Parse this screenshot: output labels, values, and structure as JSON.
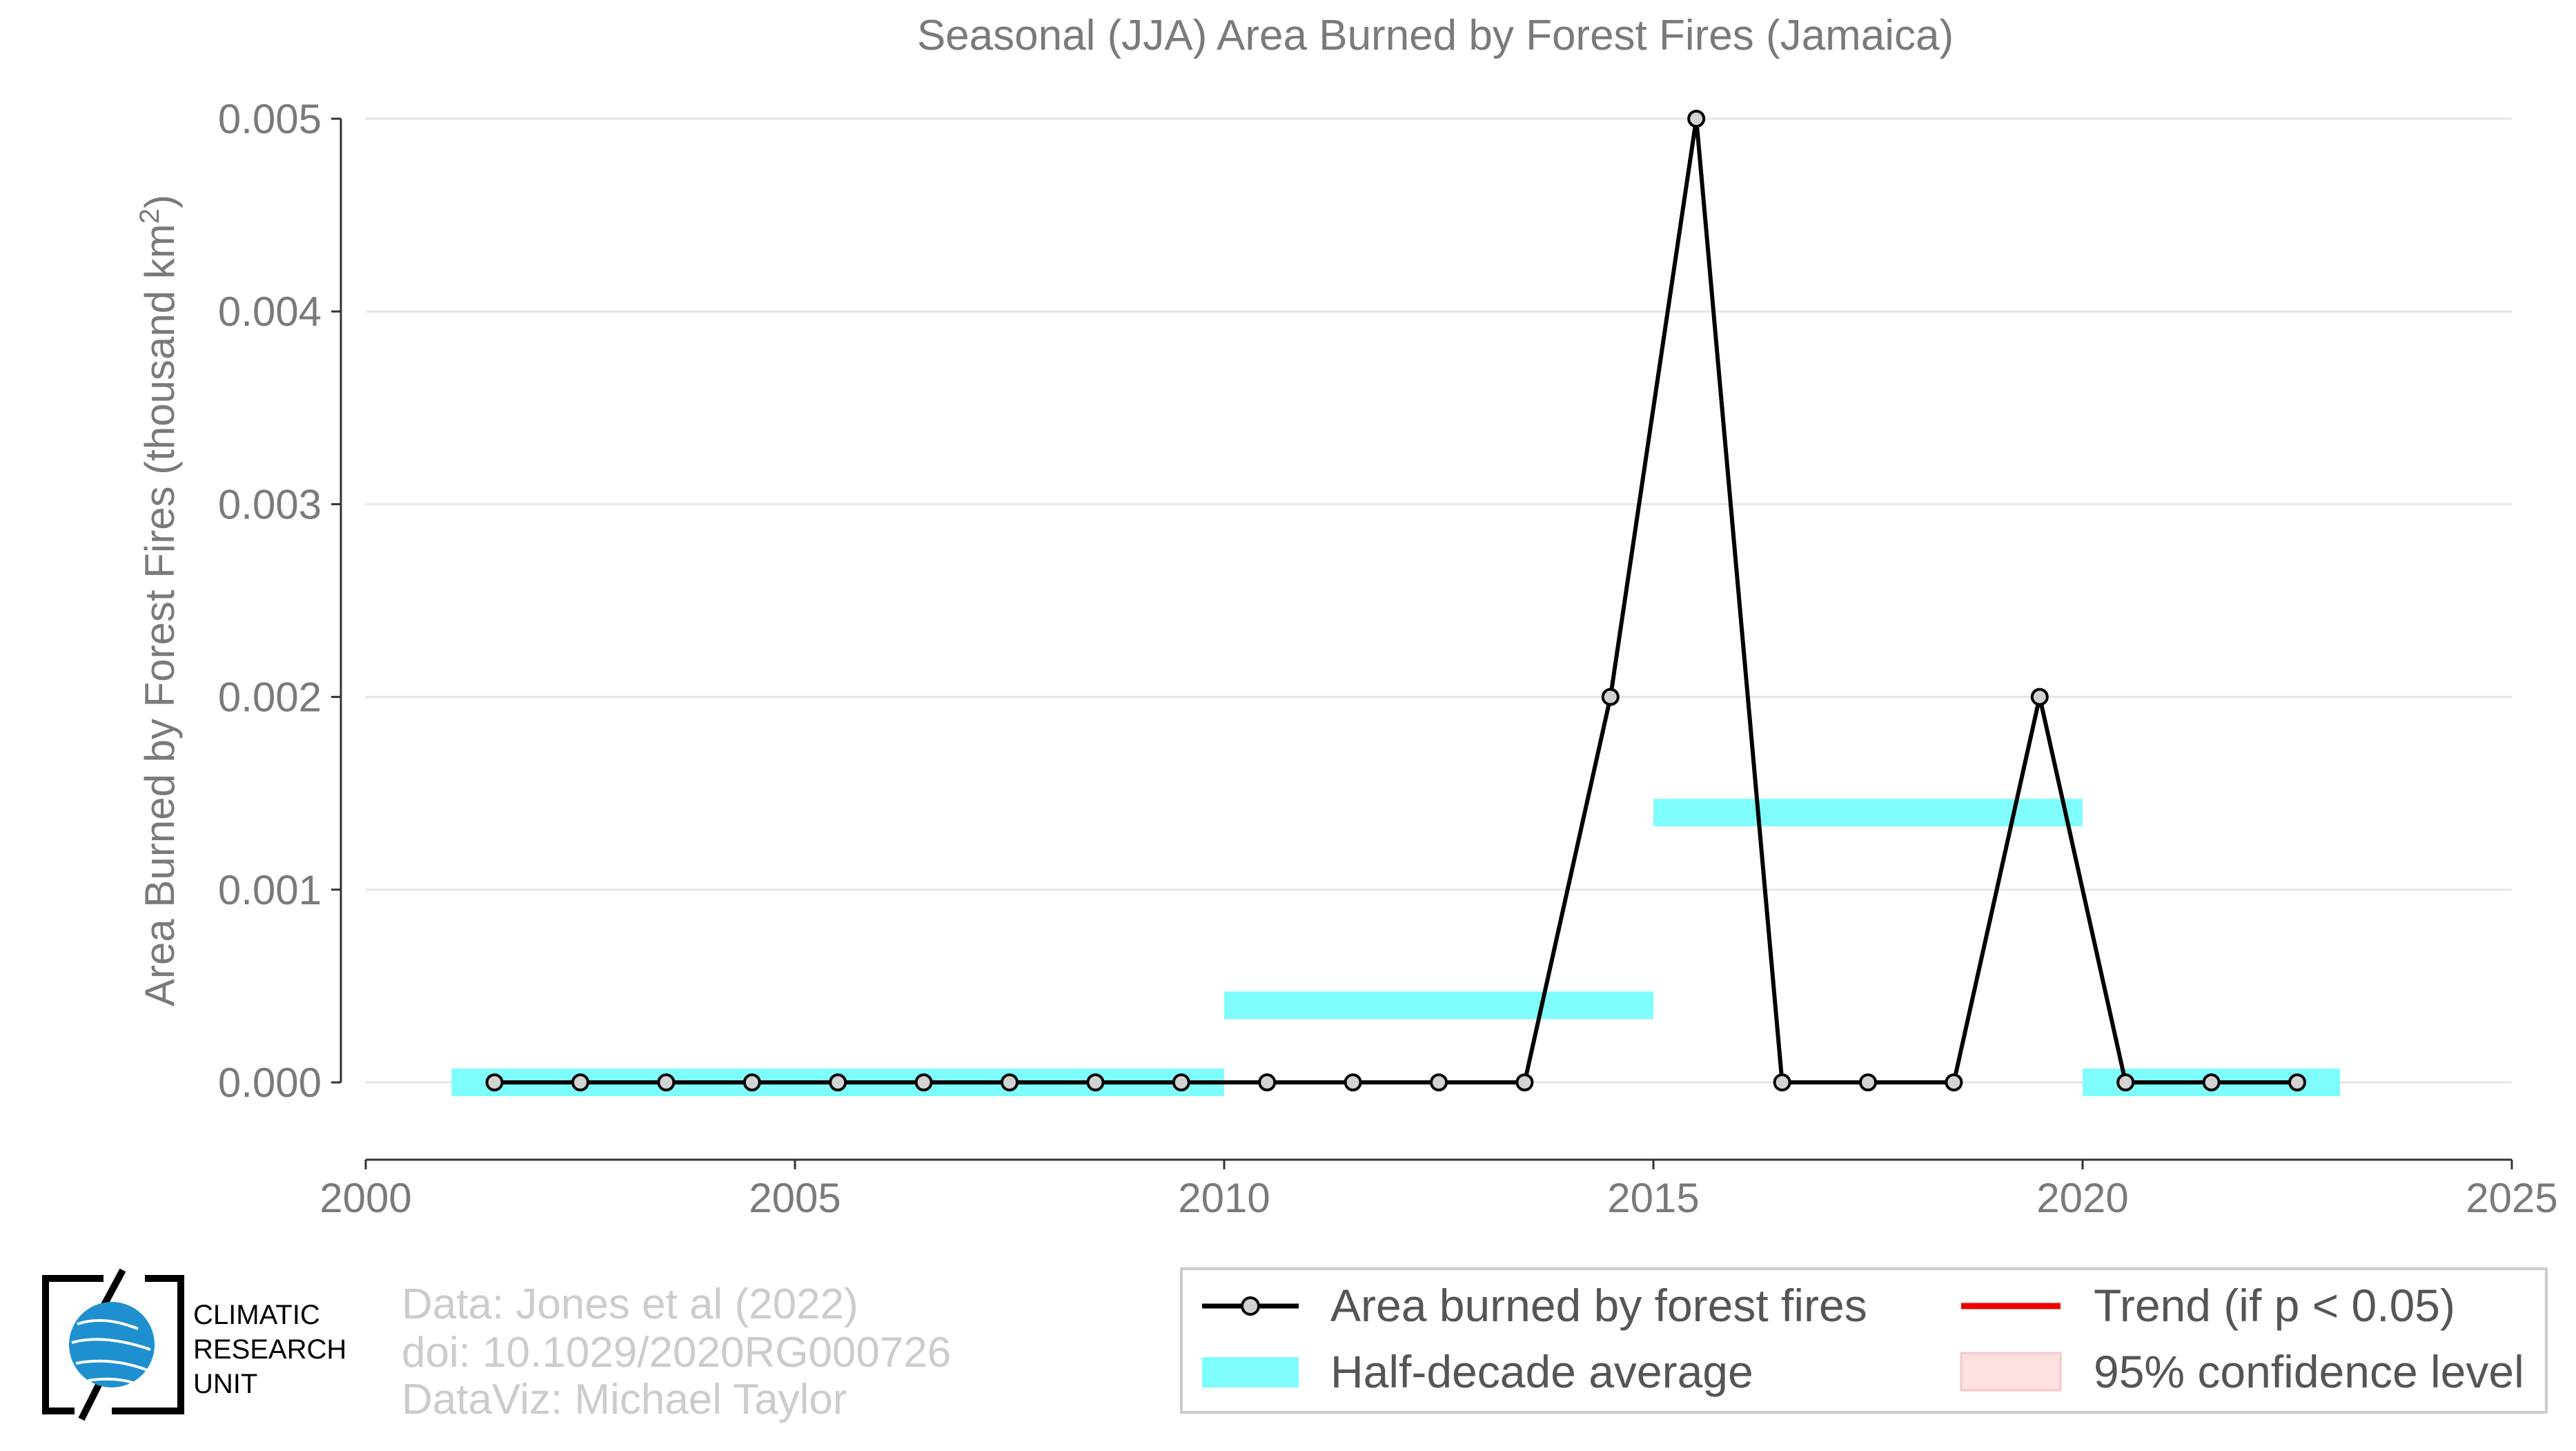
{
  "chart_data": {
    "type": "line",
    "title": "Seasonal (JJA) Area Burned by Forest Fires (Jamaica)",
    "xlabel": "",
    "ylabel": "Area Burned by Forest Fires (thousand km",
    "ylabel_sup": "2",
    "ylabel_close": ")",
    "xlim": [
      2000,
      2025
    ],
    "ylim": [
      0,
      0.005
    ],
    "xticks": [
      2000,
      2005,
      2010,
      2015,
      2020,
      2025
    ],
    "yticks": [
      "0.000",
      "0.001",
      "0.002",
      "0.003",
      "0.004",
      "0.005"
    ],
    "grid": "horizontal",
    "series": [
      {
        "name": "Area burned by forest fires",
        "color": "#000000",
        "x": [
          2001.5,
          2002.5,
          2003.5,
          2004.5,
          2005.5,
          2006.5,
          2007.5,
          2008.5,
          2009.5,
          2010.5,
          2011.5,
          2012.5,
          2013.5,
          2014.5,
          2015.5,
          2016.5,
          2017.5,
          2018.5,
          2019.5,
          2020.5,
          2021.5,
          2022.5
        ],
        "y": [
          0,
          0,
          0,
          0,
          0,
          0,
          0,
          0,
          0,
          0,
          0,
          0,
          0,
          0.002,
          0.005,
          0,
          0,
          0,
          0.002,
          0,
          0,
          0
        ]
      }
    ],
    "half_decade_average": {
      "name": "Half-decade average",
      "color": "#7ffcfc",
      "segments": [
        {
          "x0": 2001,
          "x1": 2010,
          "y": 0.0
        },
        {
          "x0": 2010,
          "x1": 2015,
          "y": 0.0004
        },
        {
          "x0": 2015,
          "x1": 2020,
          "y": 0.0014
        },
        {
          "x0": 2020,
          "x1": 2023,
          "y": 0.0
        }
      ]
    },
    "legend": {
      "placement": "bottom-right",
      "items": [
        {
          "label": "Area burned by forest fires",
          "kind": "line-marker",
          "color": "#000000"
        },
        {
          "label": "Trend (if p < 0.05)",
          "kind": "line",
          "color": "#ee0000"
        },
        {
          "label": "Half-decade average",
          "kind": "band",
          "color": "#7ffcfc"
        },
        {
          "label": "95% confidence level",
          "kind": "fill",
          "color": "#fde0e0"
        }
      ]
    }
  },
  "credits": {
    "line1": "Data: Jones et al (2022)",
    "line2": "doi: 10.1029/2020RG000726",
    "line3": "DataViz: Michael Taylor"
  },
  "logo": {
    "line1": "CLIMATIC",
    "line2": "RESEARCH",
    "line3": "UNIT",
    "globe_color": "#1e90d0"
  }
}
